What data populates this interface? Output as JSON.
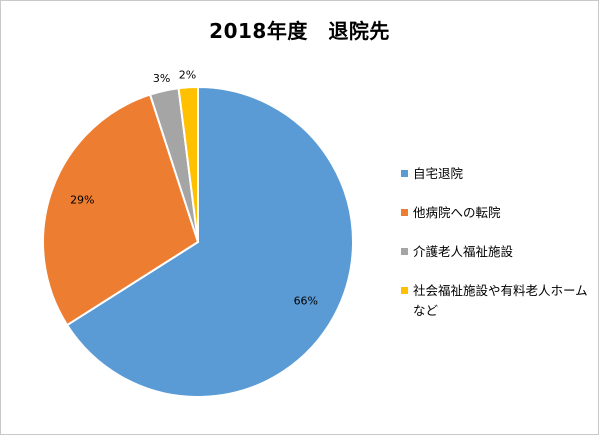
{
  "chart_data": {
    "type": "pie",
    "title": "2018年度　退院先",
    "categories": [
      "自宅退院",
      "他病院への転院",
      "介護老人福祉施設",
      "社会福祉施設や有料老人ホームなど"
    ],
    "values": [
      66,
      29,
      3,
      2
    ],
    "data_labels": [
      "66%",
      "29%",
      "3%",
      "2%"
    ],
    "colors": [
      "#5B9BD5",
      "#ED7D31",
      "#A5A5A5",
      "#FFC000"
    ],
    "legend_position": "right"
  }
}
